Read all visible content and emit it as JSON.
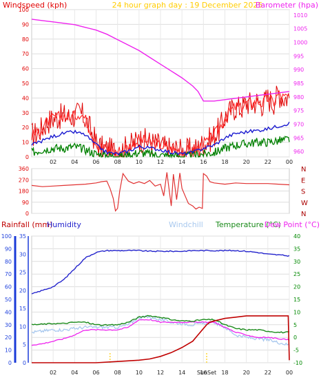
{
  "header": {
    "windspeed_label": "Windspeed (kph)",
    "date_label": "24 hour graph day : 19 December 2025",
    "barometer_label": "Barometer (hpa)"
  },
  "lower_header": {
    "rainfall_label": "Rainfall (mm)",
    "humidity_label": "Humidity",
    "windchill_label": "Windchill",
    "temperature_label": "Temperature (°C)",
    "dewpoint_label": "Dew Point (°C)"
  },
  "colors": {
    "windspeed": "#e00000",
    "gust": "#ff2a2a",
    "wind_avg": "#1a1ad0",
    "wind_low": "#008000",
    "barometer": "#ee22ee",
    "header_date": "#ffcc00",
    "direction": "#e03030",
    "direction_labels": "#aa0000",
    "rain": "#c00000",
    "humidity": "#2222cc",
    "windchill": "#a8c8ee",
    "temperature": "#1a8a1a",
    "dewpoint": "#ee22ee",
    "sun_marker": "#ffcc00",
    "humidity_axis": "#2244dd",
    "temp_axis": "#008800"
  },
  "chart_data": [
    {
      "type": "line",
      "title": "24 hour graph day : 19 December 2025",
      "x_ticks": [
        "02",
        "04",
        "06",
        "08",
        "10",
        "12",
        "14",
        "16",
        "18",
        "20",
        "22",
        "00"
      ],
      "x_tick_hours": [
        2,
        4,
        6,
        8,
        10,
        12,
        14,
        16,
        18,
        20,
        22,
        24
      ],
      "x_range_hours": [
        0,
        24
      ],
      "ylabel_left": "Windspeed (kph)",
      "ylim_left": [
        0,
        100
      ],
      "yticks_left": [
        0,
        10,
        20,
        30,
        40,
        50,
        60,
        70,
        80,
        90,
        100
      ],
      "ylabel_right": "Barometer (hpa)",
      "ylim_right": [
        958,
        1012
      ],
      "yticks_right": [
        960,
        965,
        970,
        975,
        980,
        985,
        990,
        995,
        1000,
        1005,
        1010
      ],
      "grid": true,
      "series": [
        {
          "name": "Windspeed (kph)",
          "axis": "left",
          "x": [
            0,
            0.5,
            1,
            1.5,
            2,
            2.5,
            3,
            3.5,
            4,
            4.5,
            5,
            5.5,
            6,
            6.5,
            7,
            7.5,
            8,
            8.5,
            9,
            9.5,
            10,
            10.5,
            11,
            11.5,
            12,
            12.5,
            13,
            13.5,
            14,
            14.5,
            15,
            15.5,
            16,
            16.5,
            17,
            17.5,
            18,
            18.5,
            19,
            19.5,
            20,
            20.5,
            21,
            21.5,
            22,
            22.5,
            23,
            23.5,
            24
          ],
          "y": [
            15,
            16,
            20,
            24,
            26,
            27,
            28,
            27,
            28,
            30,
            26,
            18,
            10,
            6,
            5,
            4,
            4,
            5,
            7,
            9,
            12,
            11,
            10,
            9,
            8,
            6,
            5,
            5,
            4,
            4,
            5,
            6,
            9,
            11,
            15,
            19,
            27,
            31,
            34,
            33,
            37,
            36,
            38,
            36,
            40,
            37,
            43,
            40,
            41
          ]
        },
        {
          "name": "Wind average",
          "axis": "left",
          "x": [
            0,
            1,
            2,
            3,
            4,
            5,
            6,
            7,
            8,
            9,
            10,
            11,
            12,
            13,
            14,
            15,
            16,
            17,
            18,
            19,
            20,
            21,
            22,
            23,
            24
          ],
          "y": [
            8,
            11,
            14,
            16,
            17,
            15,
            8,
            3,
            2,
            4,
            7,
            6,
            5,
            3,
            2,
            3,
            6,
            8,
            13,
            16,
            17,
            18,
            19,
            21,
            23
          ]
        },
        {
          "name": "Wind low",
          "axis": "left",
          "x": [
            0,
            1,
            2,
            3,
            4,
            5,
            6,
            7,
            8,
            9,
            10,
            11,
            12,
            13,
            14,
            15,
            16,
            17,
            18,
            19,
            20,
            21,
            22,
            23,
            24
          ],
          "y": [
            3,
            5,
            6,
            6,
            7,
            5,
            2,
            1,
            0,
            1,
            3,
            2,
            1,
            1,
            0,
            1,
            2,
            3,
            6,
            8,
            9,
            10,
            10,
            11,
            12
          ]
        },
        {
          "name": "Barometer (hpa)",
          "axis": "right",
          "x": [
            0,
            1,
            2,
            3,
            4,
            5,
            6,
            7,
            8,
            9,
            10,
            11,
            12,
            13,
            14,
            15,
            15.5,
            16,
            17,
            18,
            19,
            20,
            21,
            22,
            23,
            24
          ],
          "y": [
            1008.5,
            1008,
            1007.5,
            1007,
            1006.5,
            1005.5,
            1004.5,
            1003,
            1001,
            999,
            997,
            994.5,
            992,
            989.5,
            987,
            984,
            982,
            978.5,
            978.5,
            979,
            979.5,
            980,
            980.5,
            981,
            981.5,
            982
          ]
        }
      ]
    },
    {
      "type": "line",
      "title": "Wind direction",
      "ylim": [
        0,
        360
      ],
      "yticks": [
        0,
        90,
        180,
        270,
        360
      ],
      "y_direction_labels": [
        "N",
        "W",
        "S",
        "E",
        "N"
      ],
      "grid": true,
      "series": [
        {
          "name": "Wind direction",
          "x": [
            0,
            1,
            2,
            3,
            4,
            5,
            6,
            6.5,
            7,
            7.3,
            7.6,
            7.8,
            8,
            8.2,
            8.5,
            9,
            9.5,
            10,
            10.5,
            11,
            11.5,
            12,
            12.3,
            12.6,
            13,
            13.2,
            13.5,
            13.8,
            14,
            14.3,
            14.6,
            15,
            15.3,
            15.6,
            15.9,
            16,
            16.3,
            16.6,
            17,
            18,
            19,
            20,
            21,
            22,
            23,
            24
          ],
          "y": [
            225,
            215,
            220,
            225,
            230,
            235,
            245,
            255,
            260,
            200,
            120,
            20,
            40,
            180,
            320,
            260,
            240,
            255,
            240,
            265,
            220,
            235,
            140,
            330,
            60,
            315,
            110,
            325,
            200,
            140,
            80,
            60,
            35,
            50,
            40,
            320,
            300,
            255,
            245,
            235,
            245,
            240,
            240,
            240,
            235,
            230
          ]
        }
      ]
    },
    {
      "type": "line",
      "title": "",
      "x_ticks": [
        "02",
        "04",
        "06",
        "08",
        "10",
        "12",
        "14",
        "16",
        "18",
        "20",
        "22",
        "00"
      ],
      "x_tick_hours": [
        2,
        4,
        6,
        8,
        10,
        12,
        14,
        16,
        18,
        20,
        22,
        24
      ],
      "sunrise_hour": 7.3,
      "sunset_hour": 16.3,
      "sunset_label": "SunSet",
      "ylabel_rain": "Rainfall (mm)",
      "ylim_rain": [
        0,
        100
      ],
      "yticks_rain": [
        0,
        10,
        20,
        30,
        40,
        50,
        60,
        70,
        80,
        90,
        100
      ],
      "ylabel_humidity": "Humidity",
      "ylim_humidity": [
        0,
        35
      ],
      "yticks_humidity": [
        0,
        5,
        10,
        15,
        20,
        25,
        30,
        35
      ],
      "ylabel_temp": "Temperature (°C)",
      "ylim_temp": [
        -10,
        40
      ],
      "yticks_temp": [
        -10,
        -5,
        0,
        5,
        10,
        15,
        20,
        25,
        30,
        35,
        40
      ],
      "grid": true,
      "series": [
        {
          "name": "Rainfall (mm)",
          "axis": "rain",
          "x": [
            0,
            3,
            6,
            8,
            10,
            11,
            12,
            13,
            14,
            15,
            15.5,
            16,
            16.3,
            16.6,
            17,
            18,
            19,
            20,
            21,
            22,
            23,
            23.9,
            24
          ],
          "y": [
            0,
            0,
            0,
            1,
            2,
            3,
            5,
            8,
            12,
            17,
            22,
            27,
            30,
            32,
            33,
            35,
            36,
            37,
            37,
            37,
            37,
            37,
            2
          ]
        },
        {
          "name": "Humidity",
          "axis": "humidity",
          "x": [
            0,
            1,
            2,
            3,
            4,
            5,
            6,
            7,
            8,
            9,
            10,
            11,
            12,
            13,
            14,
            15,
            16,
            17,
            18,
            19,
            20,
            21,
            22,
            23,
            24
          ],
          "y": [
            19,
            20,
            21,
            23,
            26,
            29,
            30.5,
            31,
            31,
            31,
            31,
            30.8,
            30.8,
            30.8,
            30.8,
            31,
            31,
            31,
            31,
            31,
            30.8,
            30.5,
            30,
            29.8,
            29.5
          ]
        },
        {
          "name": "Windchill",
          "axis": "temp",
          "x": [
            0,
            1,
            2,
            3,
            4,
            5,
            6,
            7,
            8,
            9,
            10,
            11,
            12,
            13,
            14,
            15,
            16,
            17,
            18,
            19,
            20,
            21,
            22,
            23,
            24
          ],
          "y": [
            2,
            2.5,
            3,
            3,
            3.5,
            4,
            4,
            4,
            4,
            5,
            8,
            8,
            7,
            6,
            5.5,
            5,
            5.5,
            6,
            4,
            1,
            0,
            -0.5,
            -1,
            -2,
            -3
          ]
        },
        {
          "name": "Temperature (°C)",
          "axis": "temp",
          "x": [
            0,
            1,
            2,
            3,
            4,
            5,
            6,
            7,
            8,
            9,
            10,
            11,
            12,
            13,
            14,
            15,
            16,
            17,
            18,
            19,
            20,
            21,
            22,
            23,
            24
          ],
          "y": [
            5,
            5.2,
            5.5,
            5.5,
            6,
            6,
            5,
            4.8,
            5,
            6,
            8,
            8.5,
            8,
            7,
            6.5,
            6.5,
            7,
            7,
            5,
            3.5,
            3,
            3,
            2.5,
            2,
            2
          ]
        },
        {
          "name": "Dew Point (°C)",
          "axis": "temp",
          "x": [
            0,
            1,
            2,
            3,
            4,
            5,
            6,
            7,
            8,
            9,
            10,
            11,
            12,
            13,
            14,
            15,
            16,
            17,
            18,
            19,
            20,
            21,
            22,
            23,
            24
          ],
          "y": [
            -3,
            -2.5,
            -1.5,
            -0.5,
            1,
            3,
            3,
            3,
            3,
            4,
            7,
            7,
            6,
            6,
            6,
            6,
            6,
            6,
            4,
            2,
            1,
            0,
            0,
            -0.5,
            -1
          ]
        }
      ]
    }
  ]
}
